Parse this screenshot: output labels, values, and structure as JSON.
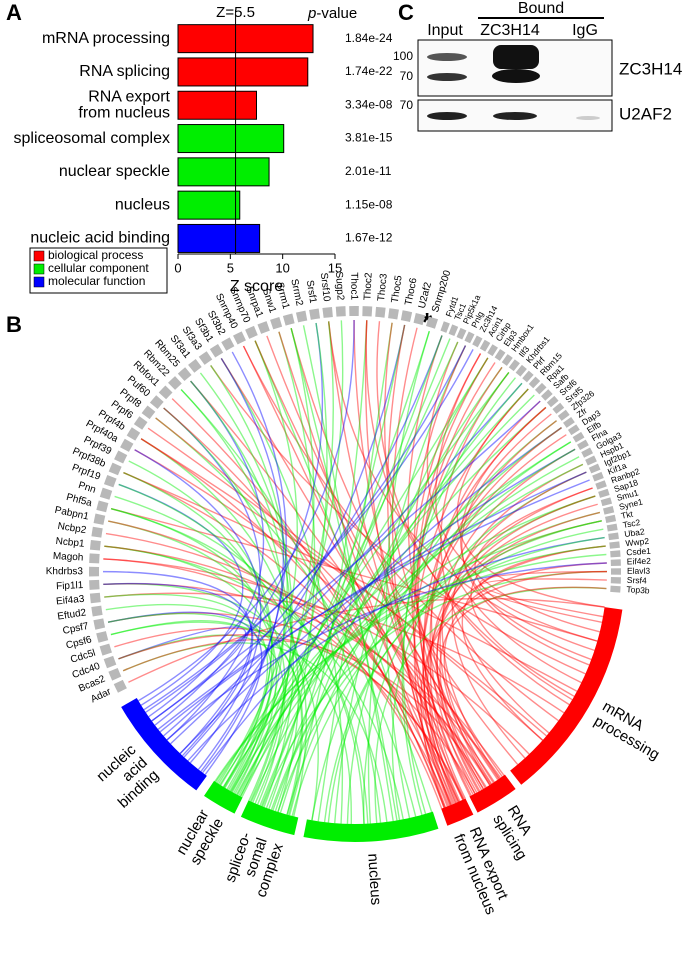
{
  "panel_labels": {
    "a": "A",
    "b": "B",
    "c": "C"
  },
  "chart_data": {
    "type": "bar",
    "orientation": "horizontal",
    "categories": [
      [
        "mRNA processing"
      ],
      [
        "RNA splicing"
      ],
      [
        "RNA export",
        "from nucleus"
      ],
      [
        "spliceosomal complex"
      ],
      [
        "nuclear speckle"
      ],
      [
        "nucleus"
      ],
      [
        "nucleic acid binding"
      ]
    ],
    "values": [
      12.9,
      12.4,
      7.5,
      10.1,
      8.7,
      5.9,
      7.8
    ],
    "colors": [
      "#ff0000",
      "#ff0000",
      "#ff0000",
      "#00ee00",
      "#00ee00",
      "#00ee00",
      "#0000ff"
    ],
    "p_value_title": [
      "p",
      "-value"
    ],
    "p_values": [
      "1.84e-24",
      "1.74e-22",
      "3.34e-08",
      "3.81e-15",
      "2.01e-11",
      "1.15e-08",
      "1.67e-12"
    ],
    "xlim": [
      0,
      15
    ],
    "xticks": [
      0,
      5,
      10,
      15
    ],
    "xlabel": "Z score",
    "reference_line": {
      "value": 5.5,
      "label": "Z=5.5"
    },
    "legend": [
      {
        "name": "biological process",
        "color": "#ff0000"
      },
      {
        "name": "cellular component",
        "color": "#00ee00"
      },
      {
        "name": "molecular function",
        "color": "#0000ff"
      }
    ]
  },
  "chord": {
    "genes_left": [
      "Adar",
      "Bcas2",
      "Cdc40",
      "Cdc5l",
      "Cpsf6",
      "Cpsf7",
      "Eftud2",
      "Eif4a3",
      "Fip1l1",
      "Khdrbs3",
      "Magoh",
      "Ncbp1",
      "Ncbp2",
      "Pabpn1",
      "Phf5a",
      "Pnn",
      "Prpf19",
      "Prpf38b",
      "Prpf39",
      "Prpf40a",
      "Prpf4b",
      "Prpf6",
      "Prpf8",
      "Puf60",
      "Rbfox1",
      "Rbm22",
      "Rbm25",
      "Sf3a1",
      "Sf3a3",
      "Sf3b1",
      "Sf3b2",
      "Snrnp40",
      "Snrnp70",
      "Snrpa1",
      "Snw1",
      "Srrm1",
      "Srrm2",
      "Srsf1",
      "Srsf10",
      "Sugp2",
      "Thoc1",
      "Thoc2",
      "Thoc3",
      "Thoc5",
      "Thoc6",
      "U2af2",
      "Snrnp200"
    ],
    "genes_right": [
      "Fytd1",
      "Tsc1",
      "Pip5k1a",
      "Pnlg",
      "Zc3h14",
      "Acin1",
      "Cirbp",
      "Elp3",
      "Hmbox1",
      "Ilf3",
      "Khdrbs1",
      "Plrf",
      "Rbm15",
      "Rpa1",
      "Safb",
      "Srsf6",
      "Srsf5",
      "Zfp326",
      "Zfr",
      "Dap3",
      "Elfb",
      "Flna",
      "Golga3",
      "Hspb1",
      "Igf2bp1",
      "Kif1a",
      "Ranbp2",
      "Sap18",
      "Smu1",
      "Syne1",
      "Tkt",
      "Tsc2",
      "Uba2",
      "Wwp2",
      "Csde1",
      "Eif4e2",
      "Elavl3",
      "Srsf4",
      "Top3b"
    ],
    "star": "*",
    "terms": [
      {
        "lines": [
          "mRNA",
          "processing"
        ],
        "color": "#ff0000"
      },
      {
        "lines": [
          "RNA",
          "splicing"
        ],
        "color": "#ff0000"
      },
      {
        "lines": [
          "RNA export",
          "from nucleus"
        ],
        "color": "#ff0000"
      },
      {
        "lines": [
          "nucleus"
        ],
        "color": "#00ee00"
      },
      {
        "lines": [
          "spliceo-",
          "somal",
          "complex"
        ],
        "color": "#00ee00"
      },
      {
        "lines": [
          "nuclear",
          "speckle"
        ],
        "color": "#00ee00"
      },
      {
        "lines": [
          "nucleic",
          "acid",
          "binding"
        ],
        "color": "#0000ff"
      }
    ]
  },
  "blot": {
    "header": "Bound",
    "lanes": [
      "Input",
      "ZC3H14",
      "IgG"
    ],
    "markers_top": [
      "100",
      "70"
    ],
    "markers_bottom": [
      "70"
    ],
    "rows": [
      "ZC3H14",
      "U2AF2"
    ]
  }
}
